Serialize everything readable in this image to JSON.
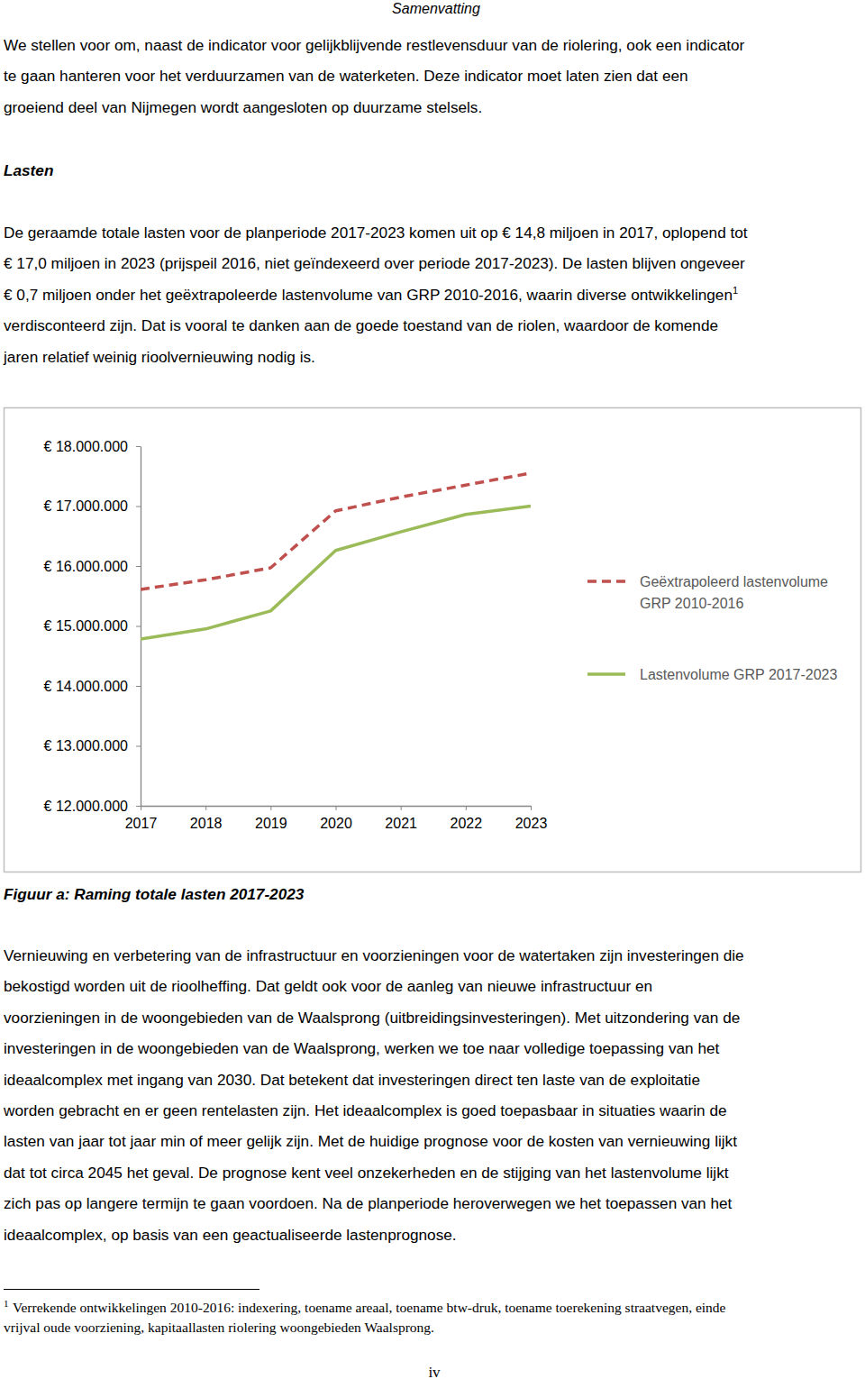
{
  "header": "Samenvatting",
  "paragraphs": [
    {
      "lines": [
        "We stellen voor om, naast de indicator voor gelijkblijvende restlevensduur van de riolering, ook een indicator",
        "te gaan hanteren voor het verduurzamen van de waterketen. Deze indicator moet laten zien dat een",
        "groeiend deel van Nijmegen wordt aangesloten op duurzame stelsels."
      ]
    },
    {
      "lines": [
        "De geraamde totale lasten voor de planperiode 2017-2023 komen uit op € 14,8 miljoen in 2017, oplopend tot",
        "€ 17,0 miljoen in 2023 (prijspeil 2016, niet geïndexeerd over periode 2017-2023). De lasten blijven ongeveer",
        {
          "text": "€ 0,7 miljoen onder het geëxtrapoleerde lastenvolume van GRP 2010-2016, waarin diverse ontwikkelingen",
          "sup": "1"
        },
        "verdisconteerd zijn. Dat is vooral te danken aan de goede toestand van de riolen, waardoor de komende",
        "jaren relatief weinig rioolvernieuwing nodig is."
      ]
    },
    {
      "lines": [
        "Vernieuwing en verbetering van de infrastructuur en voorzieningen voor de watertaken zijn investeringen die",
        "bekostigd worden uit de rioolheffing. Dat geldt ook voor de aanleg van nieuwe infrastructuur en",
        "voorzieningen in de woongebieden van de Waalsprong (uitbreidingsinvesteringen). Met uitzondering van de",
        "investeringen in de woongebieden van de Waalsprong, werken we toe naar volledige toepassing van het",
        "ideaalcomplex met ingang van 2030. Dat betekent dat investeringen direct ten laste van de exploitatie",
        "worden gebracht en er geen rentelasten zijn. Het ideaalcomplex is goed toepasbaar in situaties waarin de",
        "lasten van jaar tot jaar min of meer gelijk zijn. Met de huidige prognose voor de kosten van vernieuwing lijkt",
        "dat tot circa 2045 het geval. De prognose kent veel onzekerheden en de stijging van het lastenvolume lijkt",
        "zich pas op langere termijn te gaan voordoen. Na de planperiode heroverwegen we het toepassen van het",
        "ideaalcomplex, op basis van een geactualiseerde lastenprognose."
      ]
    }
  ],
  "heading": "Lasten",
  "chart_data": {
    "type": "line",
    "x": [
      2017,
      2018,
      2019,
      2020,
      2021,
      2022,
      2023
    ],
    "xlim": [
      2017,
      2023
    ],
    "xticks": [
      2017,
      2018,
      2019,
      2020,
      2021,
      2022,
      2023
    ],
    "ylim": [
      12000000,
      18000000
    ],
    "yticks": [
      {
        "value": 12000000,
        "label": "€ 12.000.000"
      },
      {
        "value": 13000000,
        "label": "€ 13.000.000"
      },
      {
        "value": 14000000,
        "label": "€ 14.000.000"
      },
      {
        "value": 15000000,
        "label": "€ 15.000.000"
      },
      {
        "value": 16000000,
        "label": "€ 16.000.000"
      },
      {
        "value": 17000000,
        "label": "€ 17.000.000"
      },
      {
        "value": 18000000,
        "label": "€ 18.000.000"
      }
    ],
    "grid": false,
    "legend": "right",
    "series": [
      {
        "name": "Geëxtrapoleerd lastenvolume GRP 2010-2016",
        "color": "#c0504d",
        "line_style": "dashed",
        "values": [
          15610000,
          15770000,
          15970000,
          16920000,
          17150000,
          17350000,
          17550000
        ]
      },
      {
        "name": "Lastenvolume GRP 2017-2023",
        "color": "#9bbb59",
        "line_style": "solid",
        "values": [
          14780000,
          14950000,
          15250000,
          16260000,
          16570000,
          16860000,
          17000000
        ]
      }
    ]
  },
  "caption": "Figuur a: Raming totale lasten 2017-2023",
  "footnote": {
    "marker": "1",
    "lines": [
      "Verrekende ontwikkelingen 2010-2016: indexering, toename areaal, toename btw-druk, toename toerekening straatvegen, einde",
      "vrijval oude voorziening, kapitaallasten riolering woongebieden Waalsprong."
    ]
  },
  "page_number": "iv"
}
